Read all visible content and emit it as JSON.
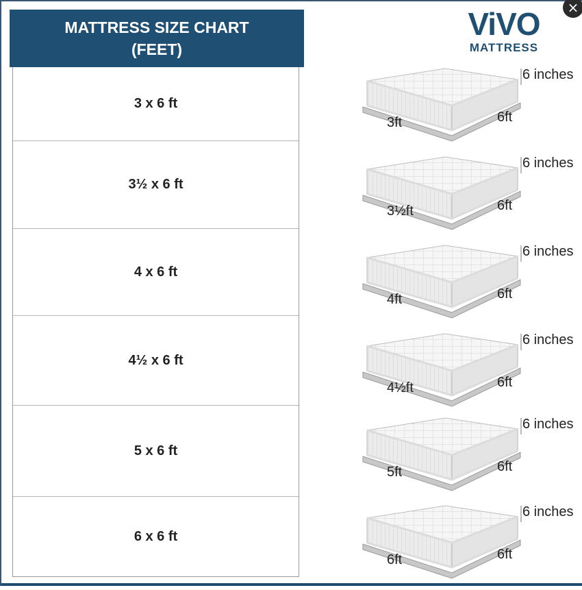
{
  "header": {
    "title_line1": "MATTRESS SIZE CHART",
    "title_line2": "(FEET)"
  },
  "logo": {
    "brand": "ViVO",
    "sub": "MATTRESS"
  },
  "close_icon": "×",
  "rows": [
    {
      "size": "3 x 6 ft",
      "width_label": "3ft",
      "length_label": "6ft",
      "height_label": "6 inches"
    },
    {
      "size": "3½ x 6 ft",
      "width_label": "3½ft",
      "length_label": "6ft",
      "height_label": "6 inches"
    },
    {
      "size": "4 x 6 ft",
      "width_label": "4ft",
      "length_label": "6ft",
      "height_label": "6 inches"
    },
    {
      "size": "4½ x 6 ft",
      "width_label": "4½ft",
      "length_label": "6ft",
      "height_label": "6 inches"
    },
    {
      "size": "5 x 6 ft",
      "width_label": "5ft",
      "length_label": "6ft",
      "height_label": "6 inches"
    },
    {
      "size": "6 x 6 ft",
      "width_label": "6ft",
      "length_label": "6ft",
      "height_label": "6 inches"
    }
  ],
  "colors": {
    "header_bg": "#1f4f72",
    "brand": "#1f4f72",
    "mattress": "#f4f4f4"
  }
}
